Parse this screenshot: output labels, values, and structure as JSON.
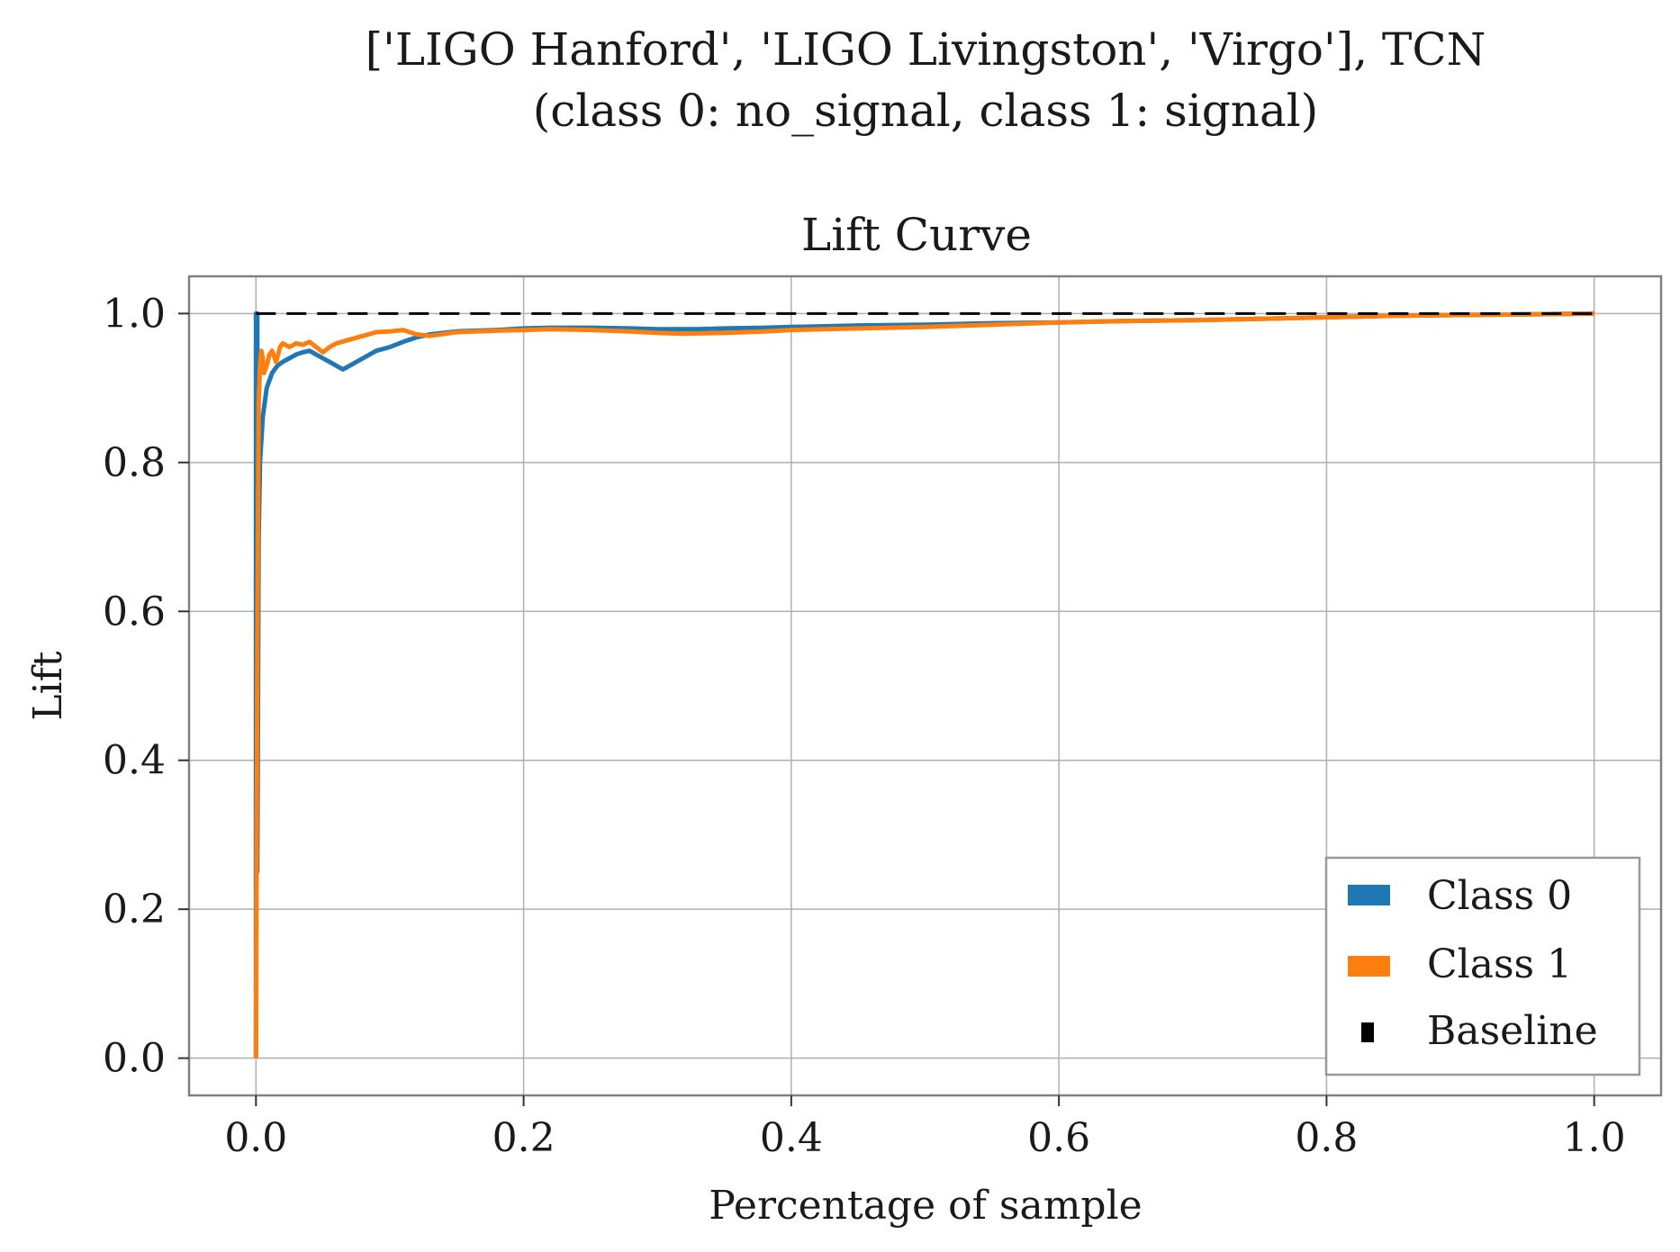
{
  "figure": {
    "suptitle_line1": "['LIGO Hanford', 'LIGO Livingston', 'Virgo'], TCN",
    "suptitle_line2": "(class 0: no_signal, class 1: signal)"
  },
  "chart_data": {
    "type": "line",
    "title": "Lift Curve",
    "xlabel": "Percentage of sample",
    "ylabel": "Lift",
    "xlim": [
      -0.05,
      1.05
    ],
    "ylim": [
      -0.05,
      1.05
    ],
    "xticks": [
      0.0,
      0.2,
      0.4,
      0.6,
      0.8,
      1.0
    ],
    "xtick_labels": [
      "0.0",
      "0.2",
      "0.4",
      "0.6",
      "0.8",
      "1.0"
    ],
    "yticks": [
      0.0,
      0.2,
      0.4,
      0.6,
      0.8,
      1.0
    ],
    "ytick_labels": [
      "0.0",
      "0.2",
      "0.4",
      "0.6",
      "0.8",
      "1.0"
    ],
    "grid": true,
    "legend_position": "lower-right",
    "series": [
      {
        "name": "Class 0",
        "color": "#1f77b4",
        "x": [
          0.0,
          0.0,
          0.001,
          0.001,
          0.002,
          0.003,
          0.005,
          0.008,
          0.012,
          0.016,
          0.02,
          0.025,
          0.03,
          0.035,
          0.04,
          0.045,
          0.05,
          0.055,
          0.06,
          0.065,
          0.07,
          0.08,
          0.09,
          0.1,
          0.11,
          0.12,
          0.13,
          0.15,
          0.18,
          0.2,
          0.22,
          0.25,
          0.28,
          0.3,
          0.33,
          0.35,
          0.38,
          0.4,
          0.45,
          0.5,
          0.55,
          0.6,
          0.65,
          0.7,
          0.75,
          0.8,
          0.85,
          0.9,
          0.95,
          1.0
        ],
        "y": [
          0.0,
          1.0,
          1.0,
          0.25,
          0.7,
          0.8,
          0.86,
          0.9,
          0.92,
          0.93,
          0.935,
          0.94,
          0.945,
          0.948,
          0.95,
          0.945,
          0.94,
          0.935,
          0.93,
          0.925,
          0.93,
          0.94,
          0.95,
          0.955,
          0.962,
          0.968,
          0.972,
          0.976,
          0.978,
          0.98,
          0.981,
          0.981,
          0.98,
          0.979,
          0.979,
          0.98,
          0.981,
          0.982,
          0.984,
          0.985,
          0.987,
          0.988,
          0.99,
          0.991,
          0.993,
          0.995,
          0.997,
          0.998,
          0.999,
          1.0
        ]
      },
      {
        "name": "Class 1",
        "color": "#ff7f0e",
        "x": [
          0.0,
          0.001,
          0.002,
          0.003,
          0.004,
          0.005,
          0.006,
          0.008,
          0.01,
          0.012,
          0.015,
          0.018,
          0.02,
          0.025,
          0.03,
          0.035,
          0.04,
          0.045,
          0.05,
          0.055,
          0.06,
          0.07,
          0.08,
          0.09,
          0.1,
          0.11,
          0.12,
          0.13,
          0.15,
          0.18,
          0.2,
          0.22,
          0.25,
          0.28,
          0.3,
          0.32,
          0.35,
          0.38,
          0.4,
          0.45,
          0.5,
          0.55,
          0.6,
          0.65,
          0.7,
          0.75,
          0.8,
          0.85,
          0.9,
          0.95,
          1.0
        ],
        "y": [
          0.0,
          0.55,
          0.88,
          0.93,
          0.95,
          0.94,
          0.92,
          0.93,
          0.945,
          0.95,
          0.935,
          0.955,
          0.96,
          0.955,
          0.96,
          0.958,
          0.962,
          0.955,
          0.948,
          0.955,
          0.96,
          0.965,
          0.97,
          0.975,
          0.976,
          0.978,
          0.972,
          0.97,
          0.975,
          0.977,
          0.978,
          0.979,
          0.978,
          0.976,
          0.974,
          0.973,
          0.974,
          0.976,
          0.978,
          0.98,
          0.982,
          0.985,
          0.988,
          0.99,
          0.991,
          0.993,
          0.995,
          0.997,
          0.998,
          0.999,
          1.0
        ]
      },
      {
        "name": "Baseline",
        "color": "#000000",
        "dashed": true,
        "x": [
          0.0,
          1.0
        ],
        "y": [
          1.0,
          1.0
        ]
      }
    ]
  }
}
